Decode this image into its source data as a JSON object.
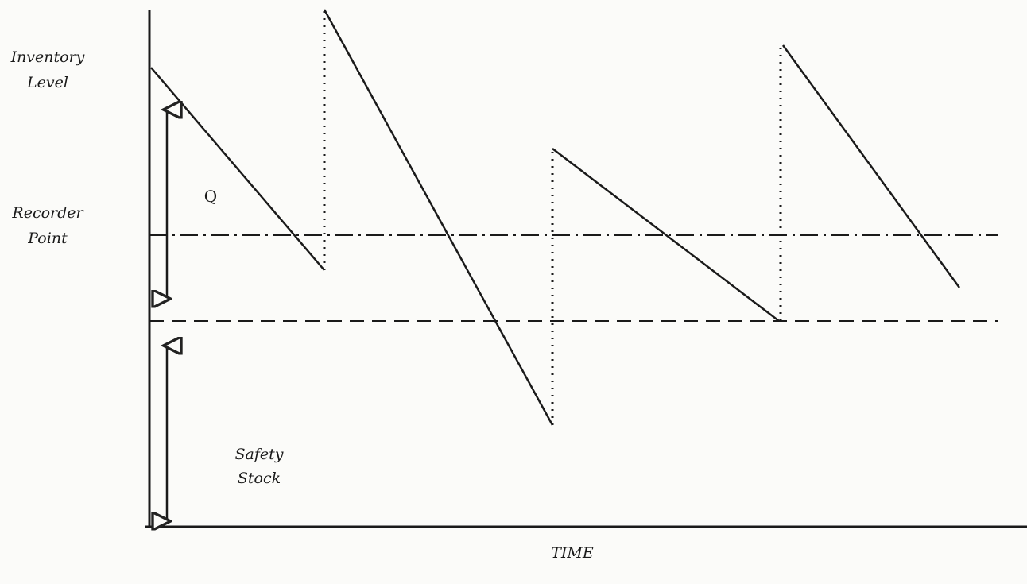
{
  "y_axis_label": [
    "Inventory",
    "Level"
  ],
  "reorder_label": [
    "Recorder",
    "Point"
  ],
  "q_label": "Q",
  "safety_label": [
    "Safety",
    "Stock"
  ],
  "x_axis_label": "TIME"
}
